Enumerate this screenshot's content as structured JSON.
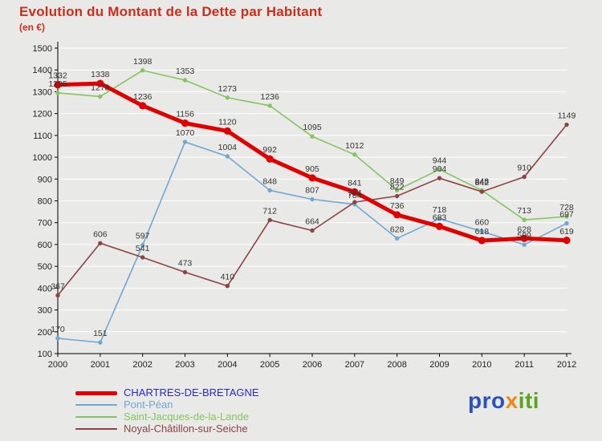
{
  "title": "Evolution du Montant de la Dette par Habitant",
  "subtitle": "(en €)",
  "colors": {
    "background": "#e9e9e8",
    "grid": "#ffffff",
    "axis": "#000000",
    "tick_label": "#222222",
    "value_label": "#333333",
    "title": "#cf2d1b"
  },
  "chart_data": {
    "type": "line",
    "title": "Evolution du Montant de la Dette par Habitant",
    "subtitle": "(en €)",
    "xlabel": "",
    "ylabel": "",
    "ylim": [
      100,
      1500
    ],
    "ytick_step": 100,
    "grid": true,
    "legend_position": "bottom-left",
    "x": [
      2000,
      2001,
      2002,
      2003,
      2004,
      2005,
      2006,
      2007,
      2008,
      2009,
      2010,
      2011,
      2012
    ],
    "series": [
      {
        "name": "CHARTRES-DE-BRETAGNE",
        "color": "#e00000",
        "label_color": "#2929c8",
        "line_width": 5,
        "marker_radius": 4.6,
        "values": [
          1332,
          1338,
          1236,
          1156,
          1120,
          992,
          905,
          841,
          736,
          683,
          618,
          628,
          619
        ]
      },
      {
        "name": "Pont-Péan",
        "color": "#6fa8d2",
        "label_color": "#6fa8d2",
        "line_width": 1.6,
        "marker_radius": 2.7,
        "values": [
          170,
          151,
          597,
          1070,
          1004,
          848,
          807,
          784,
          628,
          718,
          660,
          599,
          697
        ]
      },
      {
        "name": "Saint-Jacques-de-la-Lande",
        "color": "#85c460",
        "label_color": "#85c460",
        "line_width": 1.6,
        "marker_radius": 2.7,
        "values": [
          1295,
          1278,
          1398,
          1353,
          1273,
          1236,
          1095,
          1012,
          849,
          944,
          848,
          713,
          728
        ]
      },
      {
        "name": "Noyal-Châtillon-sur-Seiche",
        "color": "#8c4343",
        "label_color": "#8c4343",
        "line_width": 1.6,
        "marker_radius": 2.7,
        "values": [
          367,
          606,
          541,
          473,
          410,
          712,
          664,
          794,
          822,
          904,
          842,
          910,
          1149
        ]
      }
    ]
  },
  "logo": {
    "parts": [
      {
        "text": "pro",
        "color": "#2b50c0"
      },
      {
        "text": "x",
        "color": "#f08619"
      },
      {
        "text": "iti",
        "color": "#5aa51c"
      }
    ]
  }
}
